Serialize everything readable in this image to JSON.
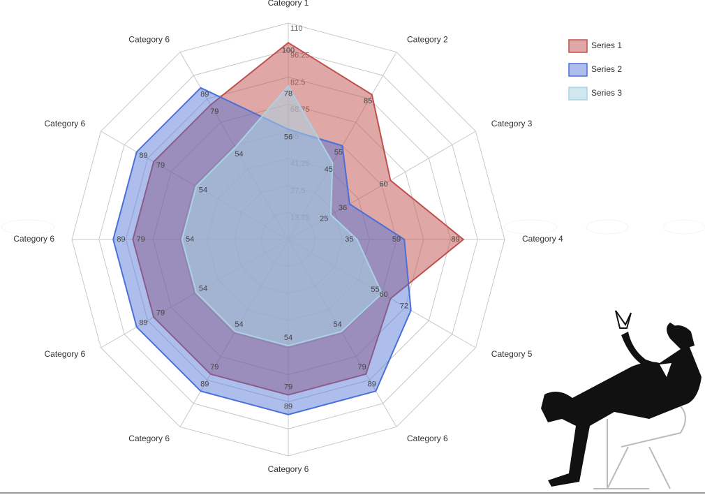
{
  "chart_data": {
    "type": "radar",
    "categories": [
      "Category 1",
      "Category 2",
      "Category 3",
      "Category 4",
      "Category 5",
      "Category 6",
      "Category 6",
      "Category 6",
      "Category 6",
      "Category 6",
      "Category 6",
      "Category 6"
    ],
    "series": [
      {
        "name": "Series 1",
        "color": "#c0504d",
        "values": [
          100,
          85,
          60,
          89,
          60,
          79,
          79,
          79,
          79,
          79,
          79,
          79
        ]
      },
      {
        "name": "Series 2",
        "color": "#4a6fd8",
        "values": [
          56,
          55,
          36,
          59,
          72,
          89,
          89,
          89,
          89,
          89,
          89,
          89
        ]
      },
      {
        "name": "Series 3",
        "color": "#a9d3e3",
        "values": [
          78,
          45,
          25,
          35,
          55,
          54,
          54,
          54,
          54,
          54,
          54,
          54
        ]
      }
    ],
    "ylim": [
      0,
      110
    ],
    "yticks": [
      13.75,
      27.5,
      41.25,
      55,
      68.75,
      82.5,
      96.25,
      110
    ],
    "grid": true,
    "legend": "top-right"
  }
}
